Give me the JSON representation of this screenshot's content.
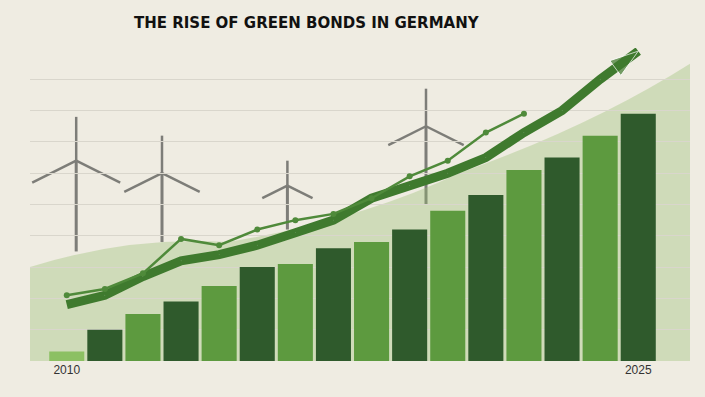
{
  "chart_data": {
    "type": "bar",
    "title": "THE RISE OF GREEN BONDS IN GERMANY",
    "categories": [
      "2010",
      null,
      null,
      null,
      null,
      null,
      null,
      null,
      null,
      null,
      null,
      null,
      null,
      null,
      null,
      "2025"
    ],
    "values": [
      3,
      10,
      15,
      19,
      24,
      30,
      31,
      36,
      38,
      42,
      48,
      53,
      61,
      65,
      72,
      79
    ],
    "colors": [
      "#8cc063",
      "#2f5a2c",
      "#5d9a3f",
      "#2f5a2c",
      "#5d9a3f",
      "#2f5a2c",
      "#5d9a3f",
      "#2f5a2c",
      "#5d9a3f",
      "#2f5a2c",
      "#5d9a3f",
      "#2f5a2c",
      "#5d9a3f",
      "#2f5a2c",
      "#5d9a3f",
      "#2f5a2c"
    ],
    "series": [
      {
        "type": "line",
        "color": "#3f7a2e",
        "marker": "arrow",
        "line_style": "solid",
        "values": [
          18,
          21,
          27,
          32,
          34,
          37,
          41,
          45,
          52,
          56,
          60,
          65,
          73,
          80,
          90,
          99
        ]
      },
      {
        "type": "line",
        "color": "#4f8a3a",
        "marker": "circle",
        "line_style": "solid",
        "values": [
          21,
          23,
          28,
          39,
          37,
          42,
          45,
          47,
          52,
          59,
          64,
          73,
          79,
          null,
          null,
          null
        ]
      }
    ],
    "ylim": [
      0,
      100
    ],
    "yticks": [
      0,
      10,
      20,
      30,
      40,
      50,
      60,
      70,
      80,
      90,
      100
    ],
    "grid": true,
    "tick_labels": "x"
  }
}
